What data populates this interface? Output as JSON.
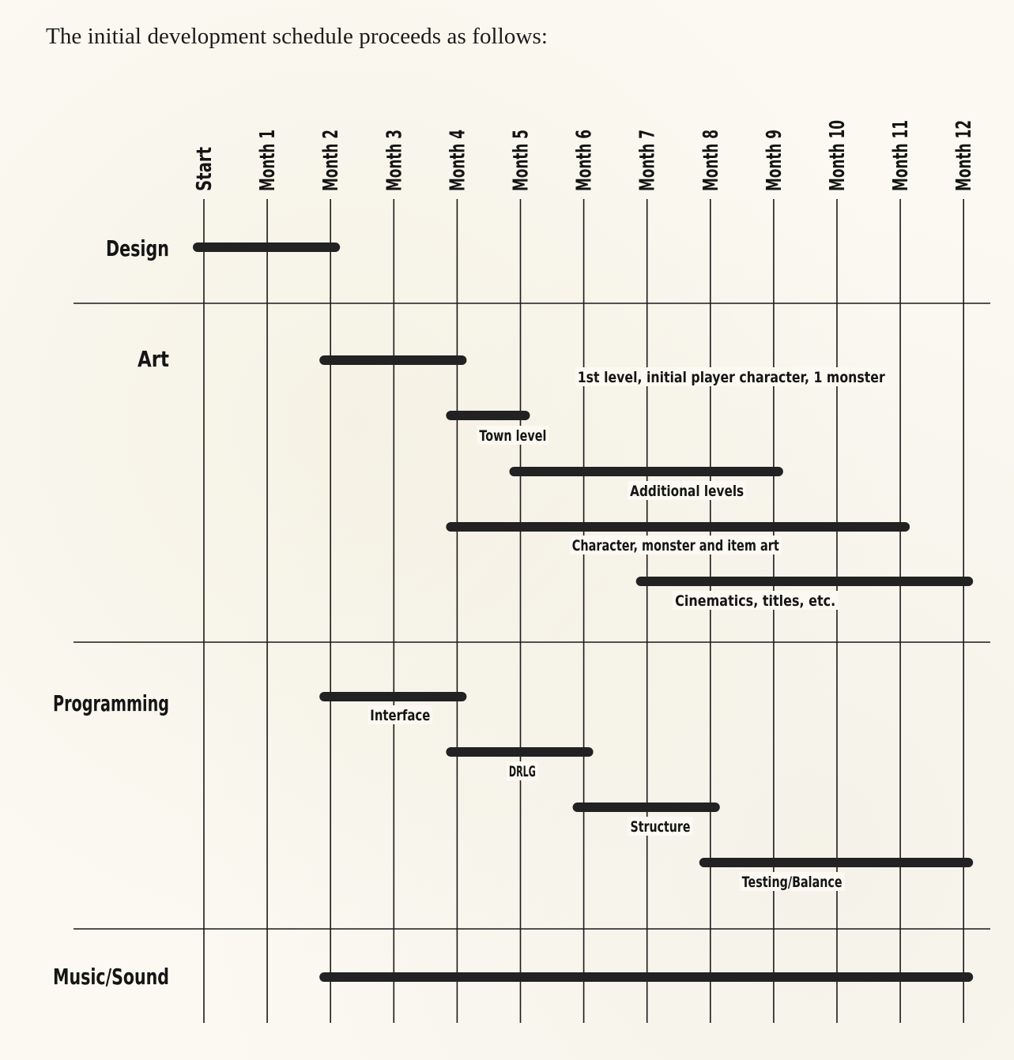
{
  "intro": "The initial development schedule proceeds as follows:",
  "chart_data": {
    "type": "gantt",
    "timeline": [
      "Start",
      "Month 1",
      "Month 2",
      "Month 3",
      "Month 4",
      "Month 5",
      "Month 6",
      "Month 7",
      "Month 8",
      "Month 9",
      "Month 10",
      "Month 11",
      "Month 12"
    ],
    "categories": [
      {
        "name": "Design",
        "tasks": [
          {
            "label": "",
            "start": 0,
            "end": 2
          }
        ]
      },
      {
        "name": "Art",
        "tasks": [
          {
            "label": "1st level, initial player character, 1 monster",
            "start": 2,
            "end": 4
          },
          {
            "label": "Town level",
            "start": 4,
            "end": 5
          },
          {
            "label": "Additional levels",
            "start": 5,
            "end": 9
          },
          {
            "label": "Character, monster and item art",
            "start": 4,
            "end": 11
          },
          {
            "label": "Cinematics, titles, etc.",
            "start": 7,
            "end": 12
          }
        ]
      },
      {
        "name": "Programming",
        "tasks": [
          {
            "label": "Interface",
            "start": 2,
            "end": 4
          },
          {
            "label": "DRLG",
            "start": 4,
            "end": 6
          },
          {
            "label": "Structure",
            "start": 6,
            "end": 8
          },
          {
            "label": "Testing/Balance",
            "start": 8,
            "end": 12
          }
        ]
      },
      {
        "name": "Music/Sound",
        "tasks": [
          {
            "label": "",
            "start": 2,
            "end": 12
          }
        ]
      }
    ],
    "colors": {
      "bar": "#222222",
      "grid": "#1a1a1a",
      "text": "#151515"
    }
  }
}
